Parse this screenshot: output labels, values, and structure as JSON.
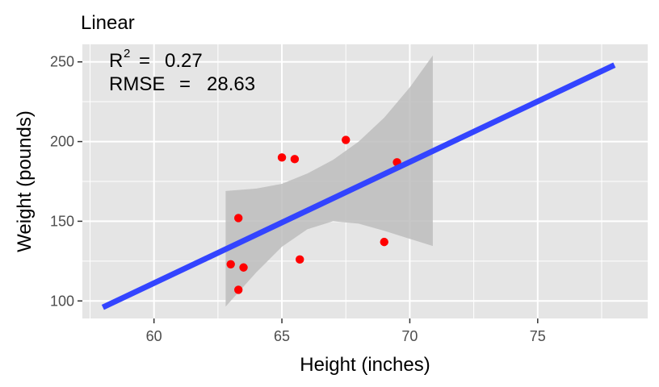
{
  "chart_data": {
    "type": "scatter",
    "title": "Linear",
    "xlabel": "Height (inches)",
    "ylabel": "Weight (pounds)",
    "xlim": [
      57.2,
      79.3
    ],
    "ylim": [
      89,
      261
    ],
    "x_ticks": [
      60,
      65,
      70,
      75
    ],
    "y_ticks": [
      100,
      150,
      200,
      250
    ],
    "grid": true,
    "points": [
      {
        "x": 63.0,
        "y": 123
      },
      {
        "x": 63.3,
        "y": 152
      },
      {
        "x": 63.3,
        "y": 107
      },
      {
        "x": 63.5,
        "y": 121
      },
      {
        "x": 65.0,
        "y": 190
      },
      {
        "x": 65.5,
        "y": 189
      },
      {
        "x": 65.7,
        "y": 126
      },
      {
        "x": 67.5,
        "y": 201
      },
      {
        "x": 69.0,
        "y": 137
      },
      {
        "x": 69.5,
        "y": 187
      }
    ],
    "fit_line": {
      "x": [
        58,
        78
      ],
      "y": [
        96,
        248
      ]
    },
    "confidence_band": {
      "x": [
        62.8,
        64.0,
        65.0,
        66.0,
        67.0,
        68.0,
        69.0,
        70.0,
        70.9
      ],
      "upper": [
        169.0,
        170.5,
        173.5,
        180.0,
        188.5,
        200.0,
        215.0,
        234.0,
        254.0
      ],
      "lower": [
        96.5,
        118.0,
        134.0,
        145.0,
        150.0,
        148.5,
        144.0,
        139.0,
        134.5
      ]
    },
    "annotation": {
      "r2_label": "R",
      "r2_sup": "2",
      "r2_eq": "=",
      "r2_value": "0.27",
      "rmse_label": "RMSE",
      "rmse_eq": "=",
      "rmse_value": "28.63"
    },
    "colors": {
      "panel": "#e5e5e5",
      "grid": "#ffffff",
      "point": "#ff0000",
      "line": "#3344ff",
      "band": "#bdbdbd"
    }
  }
}
